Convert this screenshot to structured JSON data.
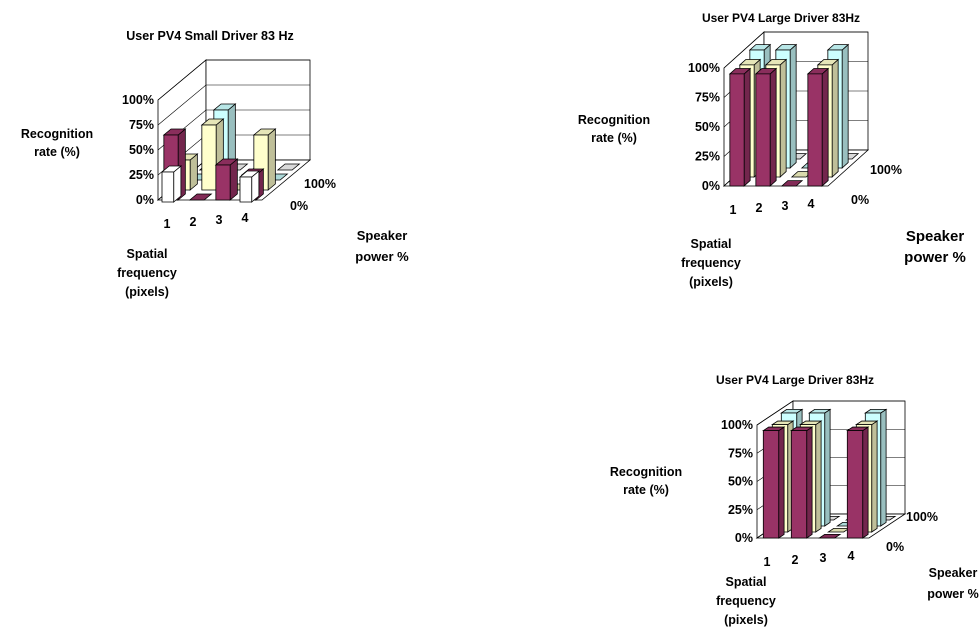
{
  "chart_data": [
    {
      "type": "bar3d",
      "title": "User PV4 Small Driver 83 Hz",
      "ylabel": [
        "Recognition",
        "rate (%)"
      ],
      "xlabel": [
        "Spatial",
        "frequency",
        "(pixels)"
      ],
      "zlabel": [
        "Speaker",
        "power %"
      ],
      "categories": [
        "1",
        "2",
        "3",
        "4"
      ],
      "yticks": [
        "0%",
        "25%",
        "50%",
        "75%",
        "100%"
      ],
      "ylim": [
        0,
        100
      ],
      "series": [
        {
          "name": "0%",
          "color": "#993366",
          "values": [
            65,
            0,
            35,
            25
          ]
        },
        {
          "name": "",
          "color": "#FFFFCC",
          "values": [
            30,
            65,
            0,
            55
          ]
        },
        {
          "name": "",
          "color": "#CCFFFF",
          "values": [
            0,
            70,
            0,
            0
          ]
        },
        {
          "name": "100%",
          "color": "#FFFFFF",
          "values": [
            0,
            0,
            0,
            0
          ]
        }
      ],
      "outlined_bars": [
        {
          "category": "1",
          "value": 30
        },
        {
          "category": "4",
          "value": 25
        }
      ]
    },
    {
      "type": "bar3d",
      "title": "User PV4 Large Driver 83Hz",
      "ylabel": [
        "Recognition",
        "rate (%)"
      ],
      "xlabel": [
        "Spatial",
        "frequency",
        "(pixels)"
      ],
      "zlabel": [
        "Speaker",
        "power %"
      ],
      "categories": [
        "1",
        "2",
        "3",
        "4"
      ],
      "yticks": [
        "0%",
        "25%",
        "50%",
        "75%",
        "100%"
      ],
      "ylim": [
        0,
        100
      ],
      "series": [
        {
          "name": "0%",
          "color": "#993366",
          "values": [
            95,
            95,
            0,
            95
          ]
        },
        {
          "name": "",
          "color": "#FFFFCC",
          "values": [
            95,
            95,
            0,
            95
          ]
        },
        {
          "name": "",
          "color": "#CCFFFF",
          "values": [
            100,
            100,
            0,
            100
          ]
        },
        {
          "name": "100%",
          "color": "#FFFFFF",
          "values": [
            0,
            0,
            0,
            0
          ]
        }
      ]
    },
    {
      "type": "bar3d",
      "title": "User PV4 Large Driver 83Hz",
      "ylabel": [
        "Recognition",
        "rate (%)"
      ],
      "xlabel": [
        "Spatial",
        "frequency",
        "(pixels)"
      ],
      "zlabel": [
        "Speaker",
        "power %"
      ],
      "categories": [
        "1",
        "2",
        "3",
        "4"
      ],
      "yticks": [
        "0%",
        "25%",
        "50%",
        "75%",
        "100%"
      ],
      "ylim": [
        0,
        100
      ],
      "series": [
        {
          "name": "0%",
          "color": "#993366",
          "values": [
            95,
            95,
            0,
            95
          ]
        },
        {
          "name": "",
          "color": "#FFFFCC",
          "values": [
            95,
            95,
            0,
            95
          ]
        },
        {
          "name": "",
          "color": "#CCFFFF",
          "values": [
            100,
            100,
            0,
            100
          ]
        },
        {
          "name": "100%",
          "color": "#FFFFFF",
          "values": [
            0,
            0,
            0,
            0
          ]
        }
      ]
    }
  ]
}
